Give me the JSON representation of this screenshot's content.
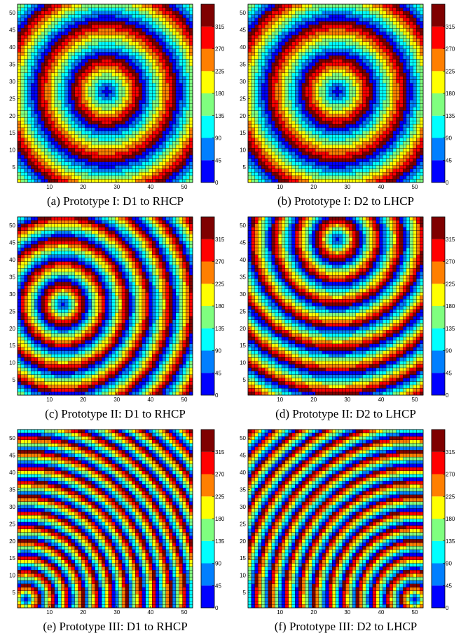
{
  "chart_data": [
    {
      "type": "heatmap",
      "caption": "(a) Prototype I: D1 to RHCP",
      "grid_size": 52,
      "x_ticks": [
        10,
        20,
        30,
        40,
        50
      ],
      "y_ticks": [
        5,
        10,
        15,
        20,
        25,
        30,
        35,
        40,
        45,
        50
      ],
      "colorbar_ticks": [
        0,
        45,
        90,
        135,
        180,
        225,
        270,
        315
      ],
      "zlim": [
        0,
        360
      ],
      "focus": [
        27,
        27
      ],
      "phase_rings_across": 5
    },
    {
      "type": "heatmap",
      "caption": "(b) Prototype I: D2 to LHCP",
      "grid_size": 52,
      "x_ticks": [
        10,
        20,
        30,
        40,
        50
      ],
      "y_ticks": [
        5,
        10,
        15,
        20,
        25,
        30,
        35,
        40,
        45,
        50
      ],
      "colorbar_ticks": [
        0,
        45,
        90,
        135,
        180,
        225,
        270,
        315
      ],
      "zlim": [
        0,
        360
      ],
      "focus": [
        27,
        27
      ],
      "phase_rings_across": 5
    },
    {
      "type": "heatmap",
      "caption": "(c) Prototype II: D1 to RHCP",
      "grid_size": 52,
      "x_ticks": [
        10,
        20,
        30,
        40,
        50
      ],
      "y_ticks": [
        5,
        10,
        15,
        20,
        25,
        30,
        35,
        40,
        45,
        50
      ],
      "colorbar_ticks": [
        0,
        45,
        90,
        135,
        180,
        225,
        270,
        315
      ],
      "zlim": [
        0,
        360
      ],
      "focus": [
        14,
        27
      ],
      "phase_rings_across": 8
    },
    {
      "type": "heatmap",
      "caption": "(d) Prototype II: D2 to LHCP",
      "grid_size": 52,
      "x_ticks": [
        10,
        20,
        30,
        40,
        50
      ],
      "y_ticks": [
        5,
        10,
        15,
        20,
        25,
        30,
        35,
        40,
        45,
        50
      ],
      "colorbar_ticks": [
        0,
        45,
        90,
        135,
        180,
        225,
        270,
        315
      ],
      "zlim": [
        0,
        360
      ],
      "focus": [
        27,
        46
      ],
      "phase_rings_across": 8
    },
    {
      "type": "heatmap",
      "caption": "(e) Prototype III: D1 to RHCP",
      "grid_size": 52,
      "x_ticks": [
        10,
        20,
        30,
        40,
        50
      ],
      "y_ticks": [
        5,
        10,
        15,
        20,
        25,
        30,
        35,
        40,
        45,
        50
      ],
      "colorbar_ticks": [
        0,
        45,
        90,
        135,
        180,
        225,
        270,
        315
      ],
      "zlim": [
        0,
        360
      ],
      "focus": [
        3,
        3
      ],
      "phase_rings_across": 12
    },
    {
      "type": "heatmap",
      "caption": "(f) Prototype III: D2 to LHCP",
      "grid_size": 52,
      "x_ticks": [
        10,
        20,
        30,
        40,
        50
      ],
      "y_ticks": [
        5,
        10,
        15,
        20,
        25,
        30,
        35,
        40,
        45,
        50
      ],
      "colorbar_ticks": [
        0,
        45,
        90,
        135,
        180,
        225,
        270,
        315
      ],
      "zlim": [
        0,
        360
      ],
      "focus": [
        50,
        3
      ],
      "phase_rings_across": 12
    }
  ],
  "colormap": [
    "#0000ff",
    "#007fff",
    "#00ffff",
    "#7fff7f",
    "#ffff00",
    "#ff7f00",
    "#ff0000",
    "#7f0000"
  ]
}
